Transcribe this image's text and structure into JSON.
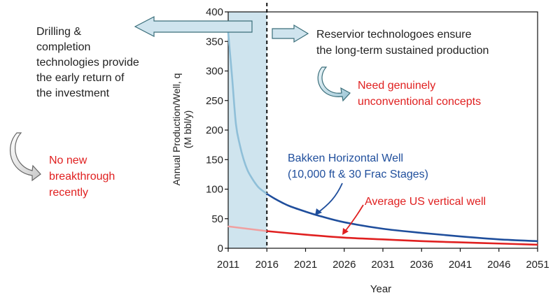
{
  "chart_data": {
    "type": "line",
    "xlabel": "Year",
    "ylabel_line1": "Annual Production/Well, q",
    "ylabel_line2": "(M bbl/y)",
    "xlim": [
      2011,
      2051
    ],
    "ylim": [
      0,
      400
    ],
    "x_ticks": [
      2011,
      2016,
      2021,
      2026,
      2031,
      2036,
      2041,
      2046,
      2051
    ],
    "x_tick_labels": [
      "2011",
      "2016",
      "2021",
      "2026",
      "2031",
      "2036",
      "2041",
      "2046",
      "2051"
    ],
    "y_ticks": [
      0,
      50,
      100,
      150,
      200,
      250,
      300,
      350,
      400
    ],
    "y_tick_labels": [
      "0",
      "50",
      "100",
      "150",
      "200",
      "250",
      "300",
      "350",
      "400"
    ],
    "highlight_band": {
      "x_start": 2011,
      "x_end": 2016,
      "color": "#cfe4ee"
    },
    "divider_year": 2016,
    "series": [
      {
        "name": "Bakken Horizontal Well",
        "color": "#1f4e9c",
        "early_color": "#8fbfd8",
        "x": [
          2011,
          2011.5,
          2012,
          2012.5,
          2013,
          2013.5,
          2014,
          2014.5,
          2015,
          2016,
          2017,
          2018,
          2019,
          2021,
          2023,
          2026,
          2031,
          2036,
          2041,
          2046,
          2051
        ],
        "values": [
          365,
          290,
          210,
          175,
          150,
          132,
          120,
          110,
          102,
          92,
          84,
          77,
          71,
          62,
          54,
          44,
          33,
          26,
          20,
          15,
          12
        ]
      },
      {
        "name": "Average US vertical well",
        "color": "#e02020",
        "early_color": "#f0a0a0",
        "x": [
          2011,
          2016,
          2021,
          2026,
          2031,
          2036,
          2041,
          2046,
          2051
        ],
        "values": [
          37,
          29,
          23,
          18,
          15,
          12,
          10,
          8,
          6
        ]
      }
    ],
    "annotations": {
      "drilling": [
        "Drilling &",
        "completion",
        "technologies provide",
        "the early return of",
        "the investment"
      ],
      "reservoir": [
        "Reservior technologoes ensure",
        "the long-term sustained production"
      ],
      "unconventional": [
        "Need genuinely",
        "unconventional concepts"
      ],
      "no_breakthrough": [
        "No new",
        "breakthrough",
        "recently"
      ],
      "bakken_label": [
        "Bakken Horizontal Well",
        "(10,000 ft & 30 Frac Stages)"
      ],
      "vertical_label": "Average US vertical well"
    },
    "colors": {
      "black_text": "#222222",
      "red_text": "#e02020",
      "blue_text": "#1f4e9c",
      "arrow_fill": "#cfe4ee",
      "arrow_stroke": "#3a6e7a"
    }
  }
}
